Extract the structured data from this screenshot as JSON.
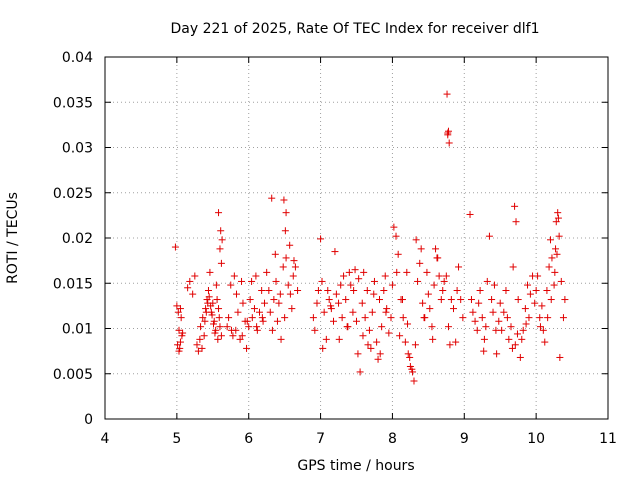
{
  "chart_data": {
    "type": "scatter",
    "title": "Day 221 of 2025, Rate Of TEC Index for receiver dlf1",
    "xlabel": "GPS time / hours",
    "ylabel": "ROTI / TECUs",
    "xlim": [
      4,
      11
    ],
    "ylim": [
      0,
      0.04
    ],
    "xticks": [
      4,
      5,
      6,
      7,
      8,
      9,
      10,
      11
    ],
    "xtick_labels": [
      "4",
      "5",
      "6",
      "7",
      "8",
      "9",
      "10",
      "11"
    ],
    "yticks": [
      0,
      0.005,
      0.01,
      0.015,
      0.02,
      0.025,
      0.03,
      0.035,
      0.04
    ],
    "ytick_labels": [
      "0",
      "0.005",
      "0.01",
      "0.015",
      "0.02",
      "0.025",
      "0.03",
      "0.035",
      "0.04"
    ],
    "grid": true,
    "marker": "+",
    "color": "#e00000",
    "series": [
      {
        "name": "ROTI",
        "x": [
          4.98,
          5.0,
          5.02,
          5.03,
          5.05,
          5.04,
          5.06,
          5.07,
          5.03,
          5.01,
          5.05,
          5.08,
          5.15,
          5.18,
          5.22,
          5.25,
          5.28,
          5.3,
          5.32,
          5.35,
          5.33,
          5.36,
          5.38,
          5.4,
          5.42,
          5.44,
          5.46,
          5.48,
          5.5,
          5.52,
          5.54,
          5.55,
          5.56,
          5.58,
          5.59,
          5.6,
          5.62,
          5.57,
          5.53,
          5.51,
          5.49,
          5.47,
          5.45,
          5.43,
          5.41,
          5.39,
          5.61,
          5.63,
          5.6,
          5.58,
          5.62,
          5.7,
          5.72,
          5.75,
          5.78,
          5.8,
          5.82,
          5.85,
          5.88,
          5.9,
          5.92,
          5.95,
          5.97,
          6.0,
          6.02,
          6.05,
          6.08,
          6.1,
          6.12,
          6.15,
          6.18,
          6.2,
          6.22,
          5.76,
          5.83,
          5.91,
          5.98,
          6.04,
          6.11,
          6.19,
          6.25,
          6.28,
          6.3,
          6.33,
          6.35,
          6.38,
          6.4,
          6.42,
          6.45,
          6.48,
          6.5,
          6.52,
          6.55,
          6.58,
          6.6,
          6.62,
          6.65,
          6.68,
          6.32,
          6.37,
          6.44,
          6.51,
          6.57,
          6.63,
          6.49,
          6.52,
          6.9,
          6.92,
          6.95,
          6.97,
          7.0,
          7.02,
          7.05,
          7.08,
          7.1,
          7.12,
          7.15,
          7.18,
          7.2,
          7.22,
          7.25,
          7.28,
          7.3,
          7.32,
          7.35,
          7.38,
          7.4,
          7.42,
          7.45,
          7.48,
          7.5,
          7.52,
          7.55,
          7.58,
          7.6,
          7.62,
          7.65,
          7.68,
          7.7,
          7.72,
          7.75,
          7.78,
          7.8,
          7.82,
          7.85,
          7.88,
          7.9,
          7.92,
          7.95,
          7.98,
          7.03,
          7.14,
          7.26,
          7.37,
          7.46,
          7.53,
          7.59,
          7.66,
          7.74,
          7.83,
          7.91,
          8.0,
          8.02,
          8.05,
          8.08,
          8.1,
          8.12,
          8.15,
          8.18,
          8.2,
          8.22,
          8.25,
          8.28,
          8.3,
          8.32,
          8.35,
          8.38,
          8.4,
          8.42,
          8.45,
          8.48,
          8.5,
          8.52,
          8.55,
          8.58,
          8.6,
          8.62,
          8.65,
          8.68,
          8.7,
          8.72,
          8.75,
          8.78,
          8.8,
          8.82,
          8.85,
          8.88,
          8.9,
          8.92,
          8.95,
          8.98,
          8.06,
          8.14,
          8.21,
          8.24,
          8.27,
          8.33,
          8.44,
          8.56,
          8.63,
          8.76,
          8.77,
          8.78,
          8.79,
          8.77,
          9.08,
          9.1,
          9.12,
          9.15,
          9.18,
          9.2,
          9.22,
          9.25,
          9.28,
          9.3,
          9.32,
          9.35,
          9.38,
          9.4,
          9.42,
          9.45,
          9.48,
          9.5,
          9.52,
          9.55,
          9.58,
          9.6,
          9.62,
          9.65,
          9.68,
          9.7,
          9.72,
          9.75,
          9.78,
          9.8,
          9.82,
          9.85,
          9.88,
          9.9,
          9.92,
          9.95,
          9.98,
          9.27,
          9.44,
          9.67,
          9.71,
          9.74,
          9.86,
          10.0,
          10.02,
          10.05,
          10.08,
          10.1,
          10.12,
          10.15,
          10.18,
          10.2,
          10.22,
          10.25,
          10.28,
          10.3,
          10.32,
          10.35,
          10.38,
          10.4,
          10.26,
          10.29,
          10.31,
          10.27,
          10.21,
          10.16,
          10.06,
          10.33
        ],
        "y": [
          0.019,
          0.0125,
          0.0118,
          0.0098,
          0.0085,
          0.0078,
          0.0112,
          0.0092,
          0.0075,
          0.0082,
          0.0122,
          0.0095,
          0.0145,
          0.0152,
          0.0138,
          0.0158,
          0.0082,
          0.0075,
          0.0088,
          0.0078,
          0.0102,
          0.0112,
          0.0092,
          0.0122,
          0.0132,
          0.0142,
          0.0162,
          0.0118,
          0.0128,
          0.0108,
          0.0098,
          0.0148,
          0.0132,
          0.0122,
          0.0112,
          0.0102,
          0.0092,
          0.0088,
          0.0095,
          0.0105,
          0.0115,
          0.0125,
          0.0135,
          0.0128,
          0.0118,
          0.0108,
          0.0208,
          0.0198,
          0.0188,
          0.0228,
          0.0172,
          0.0102,
          0.0112,
          0.0148,
          0.0092,
          0.0158,
          0.0098,
          0.0118,
          0.0088,
          0.0152,
          0.0128,
          0.0108,
          0.0078,
          0.0102,
          0.0132,
          0.0112,
          0.0122,
          0.0158,
          0.0098,
          0.0118,
          0.0142,
          0.0108,
          0.0128,
          0.0098,
          0.0138,
          0.0092,
          0.0108,
          0.0152,
          0.0102,
          0.0112,
          0.0162,
          0.0142,
          0.0118,
          0.0098,
          0.0132,
          0.0152,
          0.0108,
          0.0128,
          0.0088,
          0.0168,
          0.0112,
          0.0178,
          0.0148,
          0.0138,
          0.0122,
          0.0158,
          0.0168,
          0.0142,
          0.0244,
          0.0182,
          0.0138,
          0.0208,
          0.0192,
          0.0175,
          0.0242,
          0.0228,
          0.0112,
          0.0098,
          0.0128,
          0.0142,
          0.0199,
          0.0152,
          0.0118,
          0.0088,
          0.0142,
          0.0132,
          0.0122,
          0.0108,
          0.0185,
          0.0138,
          0.0128,
          0.0148,
          0.0112,
          0.0158,
          0.0132,
          0.0102,
          0.0162,
          0.0148,
          0.0118,
          0.0165,
          0.0108,
          0.0072,
          0.0052,
          0.0128,
          0.0162,
          0.0112,
          0.0142,
          0.0098,
          0.0078,
          0.0118,
          0.0152,
          0.0085,
          0.0066,
          0.0132,
          0.0102,
          0.0142,
          0.0158,
          0.0122,
          0.0095,
          0.0112,
          0.0078,
          0.0125,
          0.0088,
          0.0102,
          0.0142,
          0.0155,
          0.0092,
          0.0082,
          0.0138,
          0.0072,
          0.0118,
          0.0148,
          0.0212,
          0.0202,
          0.0182,
          0.0092,
          0.0132,
          0.0112,
          0.0085,
          0.0162,
          0.0072,
          0.0058,
          0.0052,
          0.0042,
          0.0082,
          0.0152,
          0.0172,
          0.0188,
          0.0128,
          0.0112,
          0.0162,
          0.0138,
          0.0122,
          0.0102,
          0.0148,
          0.0188,
          0.0178,
          0.0158,
          0.0132,
          0.0142,
          0.0152,
          0.0158,
          0.0102,
          0.0082,
          0.0132,
          0.0122,
          0.0085,
          0.0142,
          0.0168,
          0.0132,
          0.0112,
          0.0162,
          0.0132,
          0.0105,
          0.0068,
          0.0055,
          0.0198,
          0.0112,
          0.0088,
          0.0178,
          0.0359,
          0.0316,
          0.0318,
          0.0305,
          0.0314,
          0.0226,
          0.0132,
          0.0118,
          0.0108,
          0.0098,
          0.0128,
          0.0142,
          0.0112,
          0.0088,
          0.0102,
          0.0152,
          0.0202,
          0.0132,
          0.0118,
          0.0148,
          0.0072,
          0.0108,
          0.0128,
          0.0098,
          0.0118,
          0.0142,
          0.0112,
          0.0088,
          0.0102,
          0.0168,
          0.0235,
          0.0218,
          0.0132,
          0.0068,
          0.0088,
          0.0098,
          0.0122,
          0.0148,
          0.0112,
          0.0138,
          0.0158,
          0.0128,
          0.0075,
          0.0098,
          0.0078,
          0.0082,
          0.0094,
          0.0105,
          0.0142,
          0.0158,
          0.0112,
          0.0125,
          0.0098,
          0.0085,
          0.0142,
          0.0168,
          0.0198,
          0.0178,
          0.0148,
          0.0218,
          0.0228,
          0.0202,
          0.0152,
          0.0112,
          0.0132,
          0.0162,
          0.0182,
          0.0222,
          0.0188,
          0.0132,
          0.0112,
          0.0102,
          0.0068
        ]
      }
    ]
  }
}
